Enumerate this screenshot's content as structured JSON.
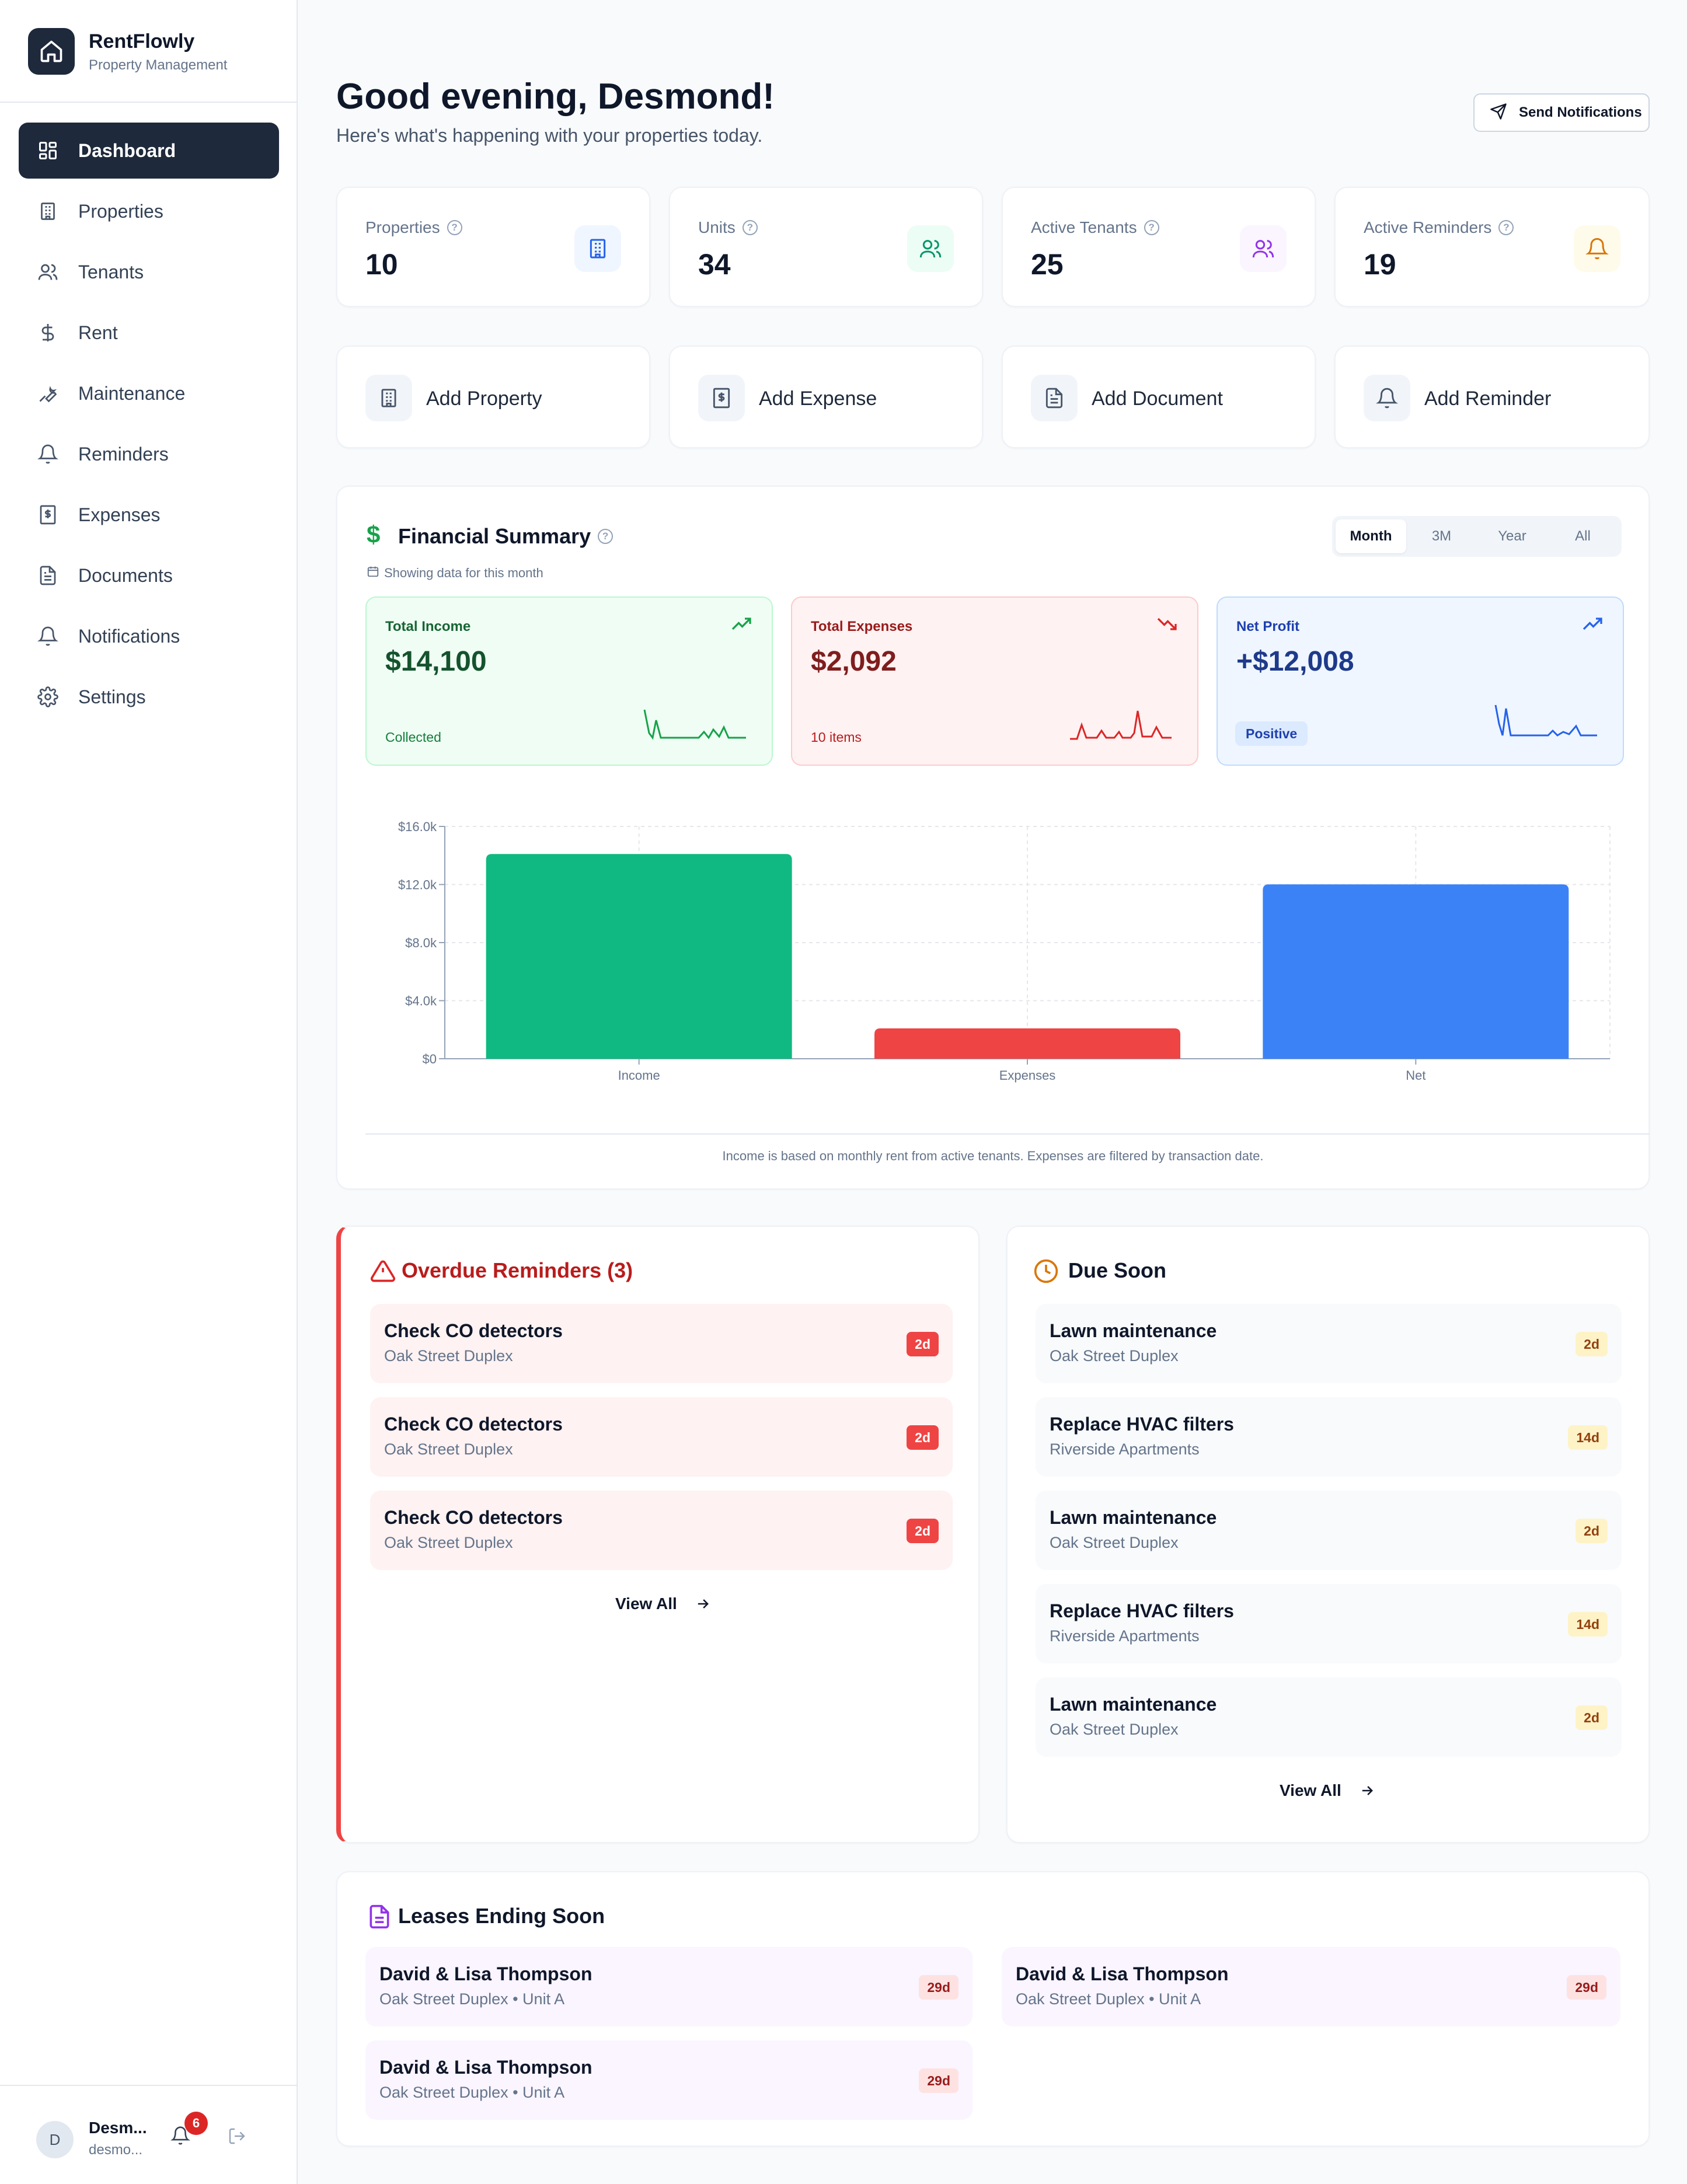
{
  "brand": {
    "name": "RentFlowly",
    "subtitle": "Property Management"
  },
  "sidebar": {
    "items": [
      {
        "label": "Dashboard",
        "icon": "dashboard-icon",
        "active": true
      },
      {
        "label": "Properties",
        "icon": "building-icon"
      },
      {
        "label": "Tenants",
        "icon": "users-icon"
      },
      {
        "label": "Rent",
        "icon": "dollar-icon"
      },
      {
        "label": "Maintenance",
        "icon": "wrench-icon"
      },
      {
        "label": "Reminders",
        "icon": "bell-icon"
      },
      {
        "label": "Expenses",
        "icon": "receipt-icon"
      },
      {
        "label": "Documents",
        "icon": "document-icon"
      },
      {
        "label": "Notifications",
        "icon": "bell-icon"
      },
      {
        "label": "Settings",
        "icon": "gear-icon"
      }
    ]
  },
  "user": {
    "initial": "D",
    "name": "Desm...",
    "email": "desmo...",
    "notification_count": "6"
  },
  "header": {
    "greeting": "Good evening, Desmond!",
    "subtitle": "Here's what's happening with your properties today.",
    "send_label": "Send Notifications"
  },
  "stats": [
    {
      "label": "Properties",
      "value": "10",
      "icon": "building-icon",
      "color": "#2563eb",
      "bg": "#eff6ff"
    },
    {
      "label": "Units",
      "value": "34",
      "icon": "users-icon",
      "color": "#059669",
      "bg": "#ecfdf5"
    },
    {
      "label": "Active Tenants",
      "value": "25",
      "icon": "users-icon",
      "color": "#9333ea",
      "bg": "#faf5ff"
    },
    {
      "label": "Active Reminders",
      "value": "19",
      "icon": "bell-icon",
      "color": "#d97706",
      "bg": "#fffbeb"
    }
  ],
  "actions": [
    {
      "label": "Add Property",
      "icon": "building-icon"
    },
    {
      "label": "Add Expense",
      "icon": "receipt-icon"
    },
    {
      "label": "Add Document",
      "icon": "document-icon"
    },
    {
      "label": "Add Reminder",
      "icon": "bell-icon"
    }
  ],
  "financial": {
    "title": "Financial Summary",
    "showing": "Showing data for this month",
    "ranges": [
      "Month",
      "3M",
      "Year",
      "All"
    ],
    "active_range": "Month",
    "income": {
      "label": "Total Income",
      "value": "$14,100",
      "foot": "Collected"
    },
    "expenses": {
      "label": "Total Expenses",
      "value": "$2,092",
      "foot": "10 items"
    },
    "net": {
      "label": "Net Profit",
      "value": "+$12,008",
      "pill": "Positive"
    },
    "footnote": "Income is based on monthly rent from active tenants. Expenses are filtered by transaction date.",
    "colors": {
      "income": "#10b981",
      "expenses": "#ef4444",
      "net": "#3b82f6"
    }
  },
  "chart_data": {
    "type": "bar",
    "categories": [
      "Income",
      "Expenses",
      "Net"
    ],
    "values": [
      14100,
      2092,
      12008
    ],
    "ylim": [
      0,
      16000
    ],
    "yticks": [
      0,
      4000,
      8000,
      12000,
      16000
    ],
    "ytick_labels": [
      "$0",
      "$4.0k",
      "$8.0k",
      "$12.0k",
      "$16.0k"
    ],
    "colors": [
      "#10b981",
      "#ef4444",
      "#3b82f6"
    ],
    "grid": true
  },
  "overdue": {
    "title": "Overdue Reminders (3)",
    "items": [
      {
        "title": "Check CO detectors",
        "sub": "Oak Street Duplex",
        "badge": "2d"
      },
      {
        "title": "Check CO detectors",
        "sub": "Oak Street Duplex",
        "badge": "2d"
      },
      {
        "title": "Check CO detectors",
        "sub": "Oak Street Duplex",
        "badge": "2d"
      }
    ],
    "view_all": "View All"
  },
  "due_soon": {
    "title": "Due Soon",
    "items": [
      {
        "title": "Lawn maintenance",
        "sub": "Oak Street Duplex",
        "badge": "2d"
      },
      {
        "title": "Replace HVAC filters",
        "sub": "Riverside Apartments",
        "badge": "14d"
      },
      {
        "title": "Lawn maintenance",
        "sub": "Oak Street Duplex",
        "badge": "2d"
      },
      {
        "title": "Replace HVAC filters",
        "sub": "Riverside Apartments",
        "badge": "14d"
      },
      {
        "title": "Lawn maintenance",
        "sub": "Oak Street Duplex",
        "badge": "2d"
      }
    ],
    "view_all": "View All"
  },
  "leases": {
    "title": "Leases Ending Soon",
    "items": [
      {
        "title": "David & Lisa Thompson",
        "sub": "Oak Street Duplex • Unit A",
        "badge": "29d"
      },
      {
        "title": "David & Lisa Thompson",
        "sub": "Oak Street Duplex • Unit A",
        "badge": "29d"
      },
      {
        "title": "David & Lisa Thompson",
        "sub": "Oak Street Duplex • Unit A",
        "badge": "29d"
      }
    ]
  }
}
